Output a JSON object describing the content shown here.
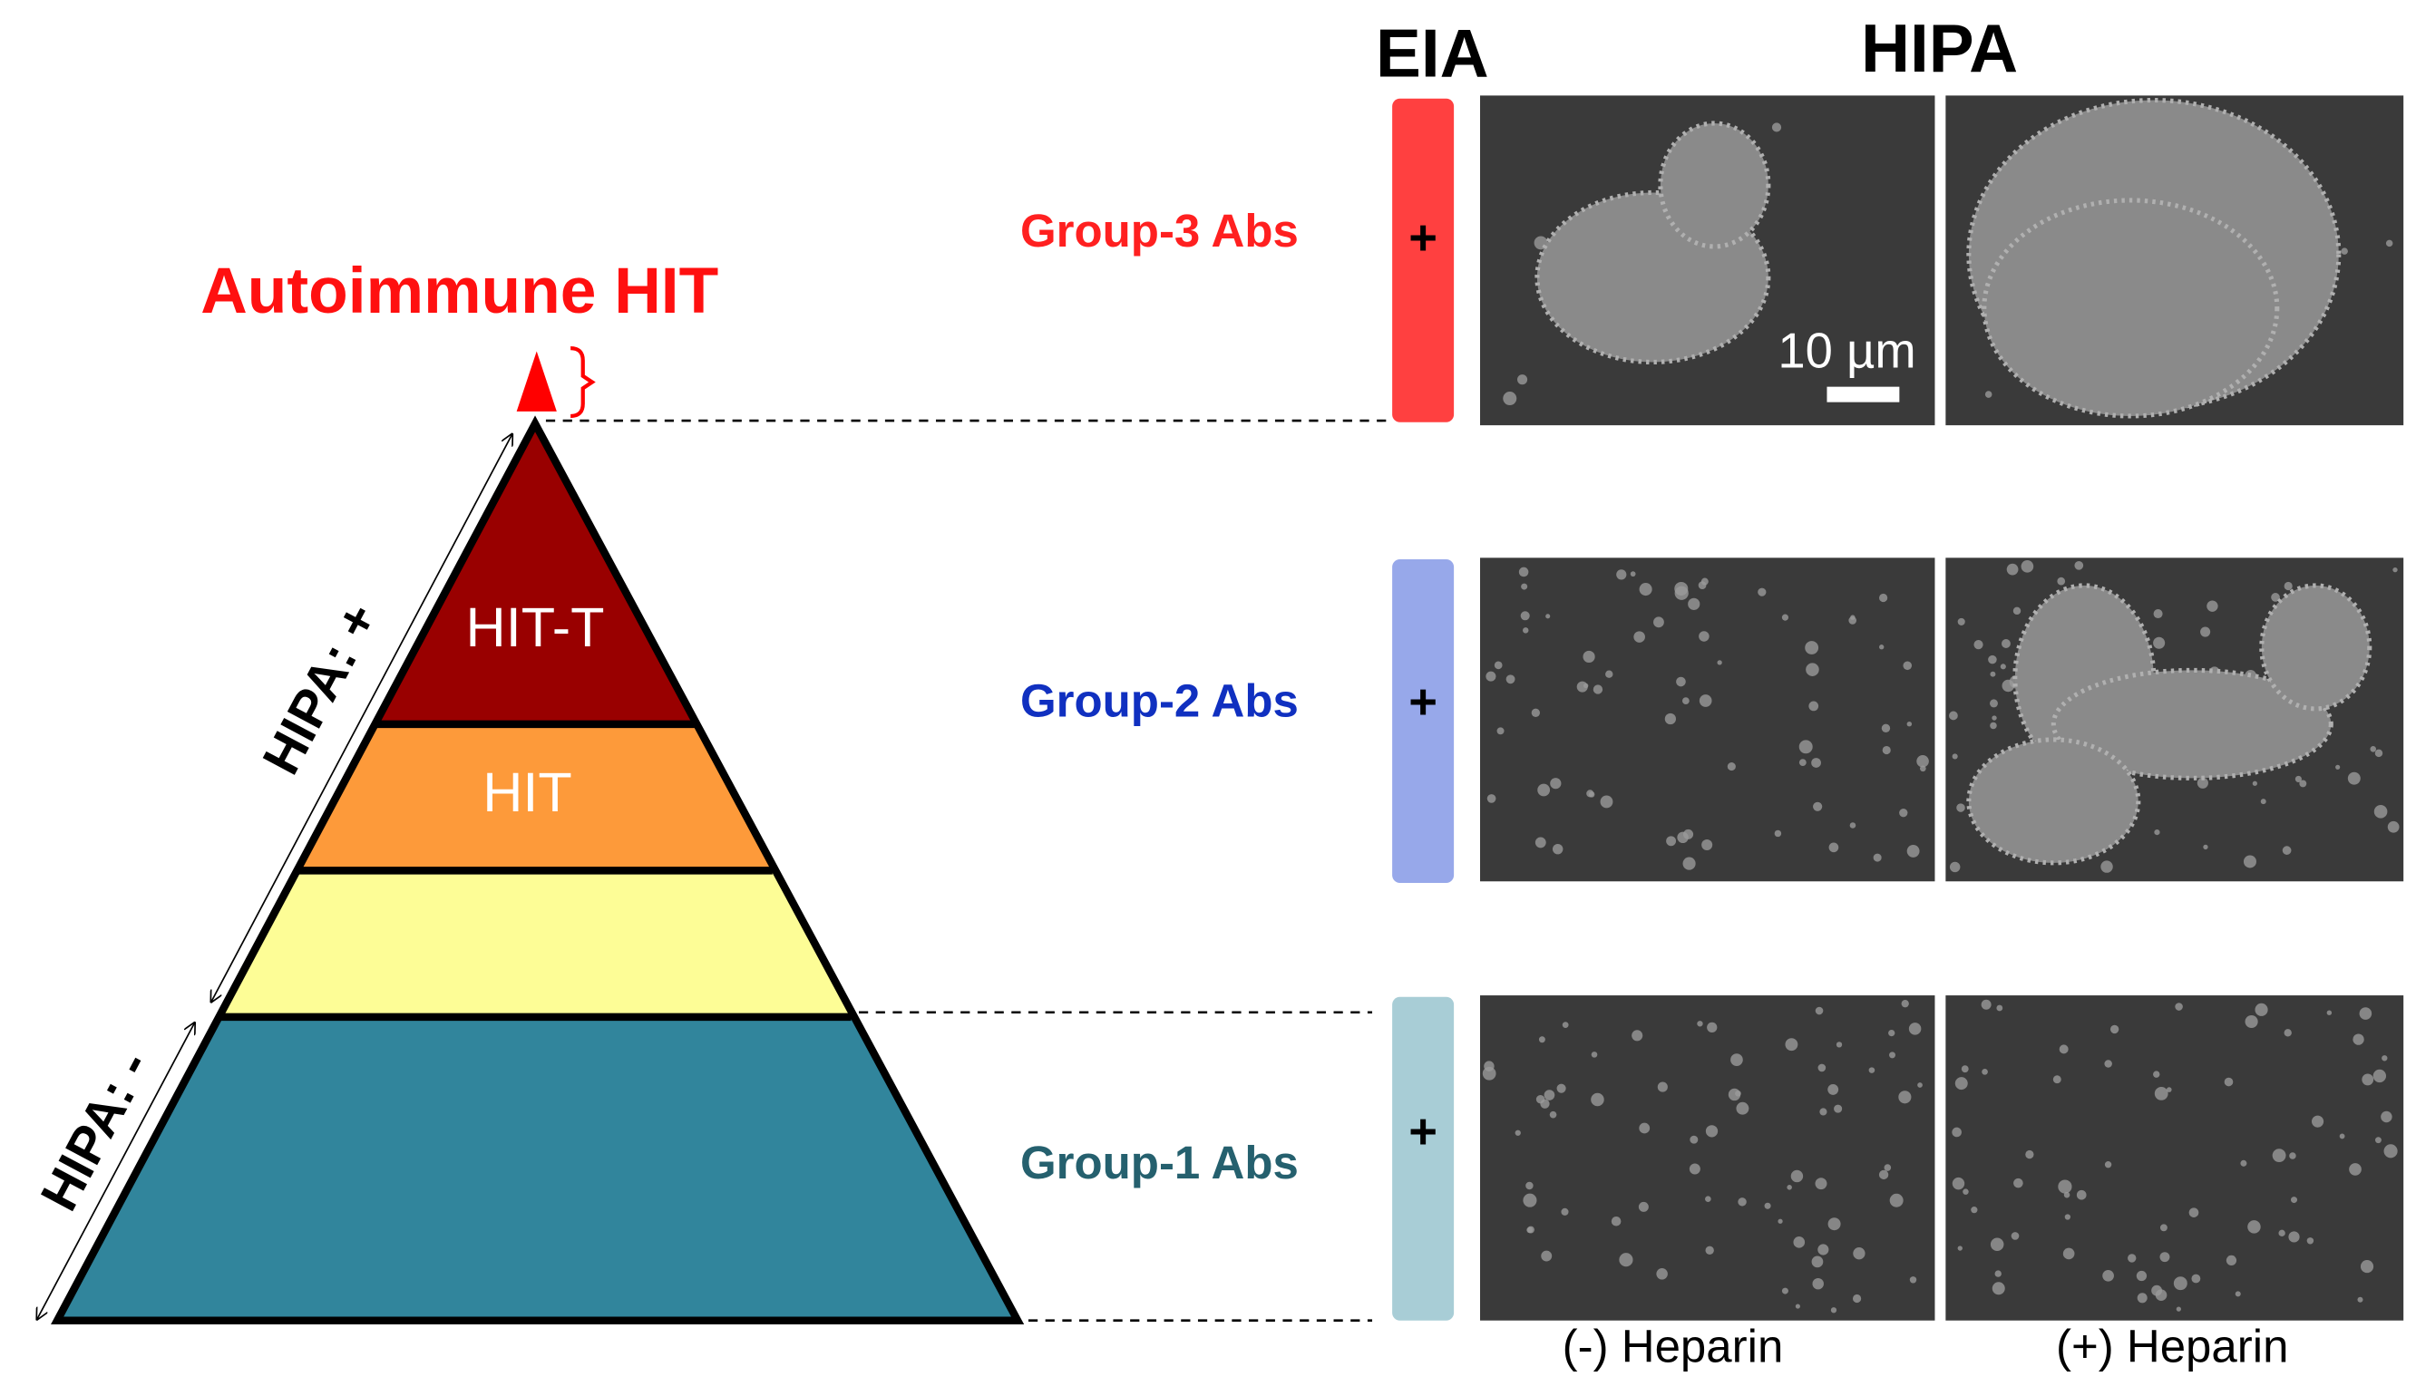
{
  "header": {
    "eia": "EIA",
    "hipa": "HIPA"
  },
  "pyramid": {
    "apex_label": "Autoimmune HIT",
    "layers": [
      "HIT-T",
      "HIT"
    ],
    "axis_labels": [
      "HIPA: +",
      "HIPA: -"
    ]
  },
  "groups": [
    {
      "label": "Group-3 Abs",
      "eia": "+"
    },
    {
      "label": "Group-2 Abs",
      "eia": "+"
    },
    {
      "label": "Group-1 Abs",
      "eia": "+"
    }
  ],
  "scale_bar": "10 µm",
  "columns": [
    "(-) Heparin",
    "(+) Heparin"
  ]
}
